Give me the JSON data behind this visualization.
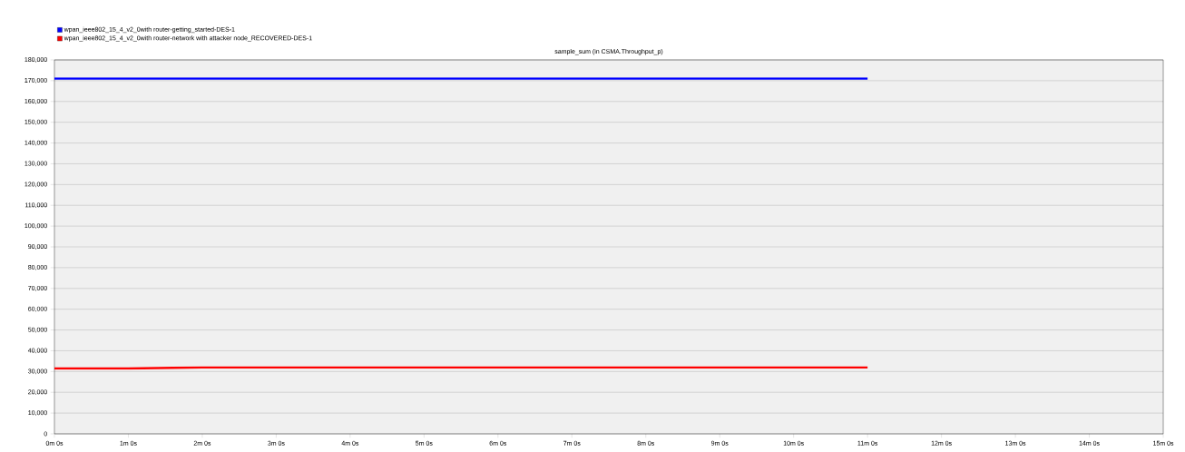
{
  "chart_data": {
    "type": "line",
    "title": "sample_sum (in CSMA.Throughput_p)",
    "categories": [
      "0m 0s",
      "1m 0s",
      "2m 0s",
      "3m 0s",
      "4m 0s",
      "5m 0s",
      "6m 0s",
      "7m 0s",
      "8m 0s",
      "9m 0s",
      "10m 0s",
      "11m 0s",
      "12m 0s",
      "13m 0s",
      "14m 0s",
      "15m 0s"
    ],
    "series": [
      {
        "name": "wpan_ieee802_15_4_v2_0with router-getting_started-DES-1",
        "color": "#0000ff",
        "values": [
          171000,
          171000,
          171000,
          171000,
          171000,
          171000,
          171000,
          171000,
          171000,
          171000,
          171000,
          171000,
          null,
          null,
          null,
          null
        ]
      },
      {
        "name": "wpan_ieee802_15_4_v2_0with router-network with attacker node_RECOVERED-DES-1",
        "color": "#ff0000",
        "values": [
          31500,
          31500,
          32000,
          32000,
          32000,
          32000,
          32000,
          32000,
          32000,
          32000,
          32000,
          32000,
          null,
          null,
          null,
          null
        ]
      }
    ],
    "ylim": [
      0,
      180000
    ],
    "yticks": [
      0,
      {
        "value": 10000,
        "label": "10,000"
      },
      {
        "value": 20000,
        "label": "20,000"
      },
      {
        "value": 30000,
        "label": "30,000"
      },
      {
        "value": 40000,
        "label": "40,000"
      },
      {
        "value": 50000,
        "label": "50,000"
      },
      {
        "value": 60000,
        "label": "60,000"
      },
      {
        "value": 70000,
        "label": "70,000"
      },
      {
        "value": 80000,
        "label": "80,000"
      },
      {
        "value": 90000,
        "label": "90,000"
      },
      {
        "value": 100000,
        "label": "100,000"
      },
      {
        "value": 110000,
        "label": "110,000"
      },
      {
        "value": 120000,
        "label": "120,000"
      },
      {
        "value": 130000,
        "label": "130,000"
      },
      {
        "value": 140000,
        "label": "140,000"
      },
      {
        "value": 150000,
        "label": "150,000"
      },
      {
        "value": 160000,
        "label": "160,000"
      },
      {
        "value": 170000,
        "label": "170,000"
      },
      {
        "value": 180000,
        "label": "180,000"
      }
    ],
    "grid": "y",
    "legend": "top left"
  }
}
